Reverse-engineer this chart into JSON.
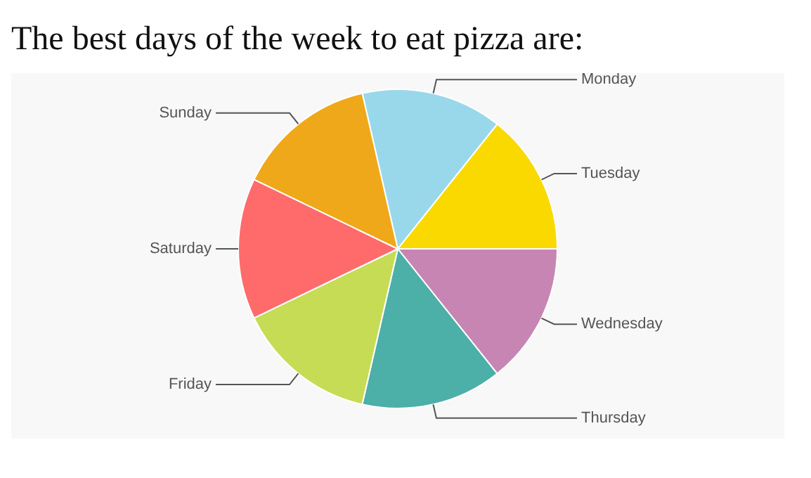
{
  "chart_data": {
    "type": "pie",
    "title": "The best days of the week to eat pizza are:",
    "categories": [
      "Monday",
      "Tuesday",
      "Wednesday",
      "Thursday",
      "Friday",
      "Saturday",
      "Sunday"
    ],
    "values": [
      14.29,
      14.29,
      14.28,
      14.29,
      14.28,
      14.29,
      14.28
    ],
    "colors": [
      "#99d8ea",
      "#fad900",
      "#c785b4",
      "#4cafa8",
      "#c5dc54",
      "#ff6b6b",
      "#efa819"
    ],
    "legend": false
  }
}
